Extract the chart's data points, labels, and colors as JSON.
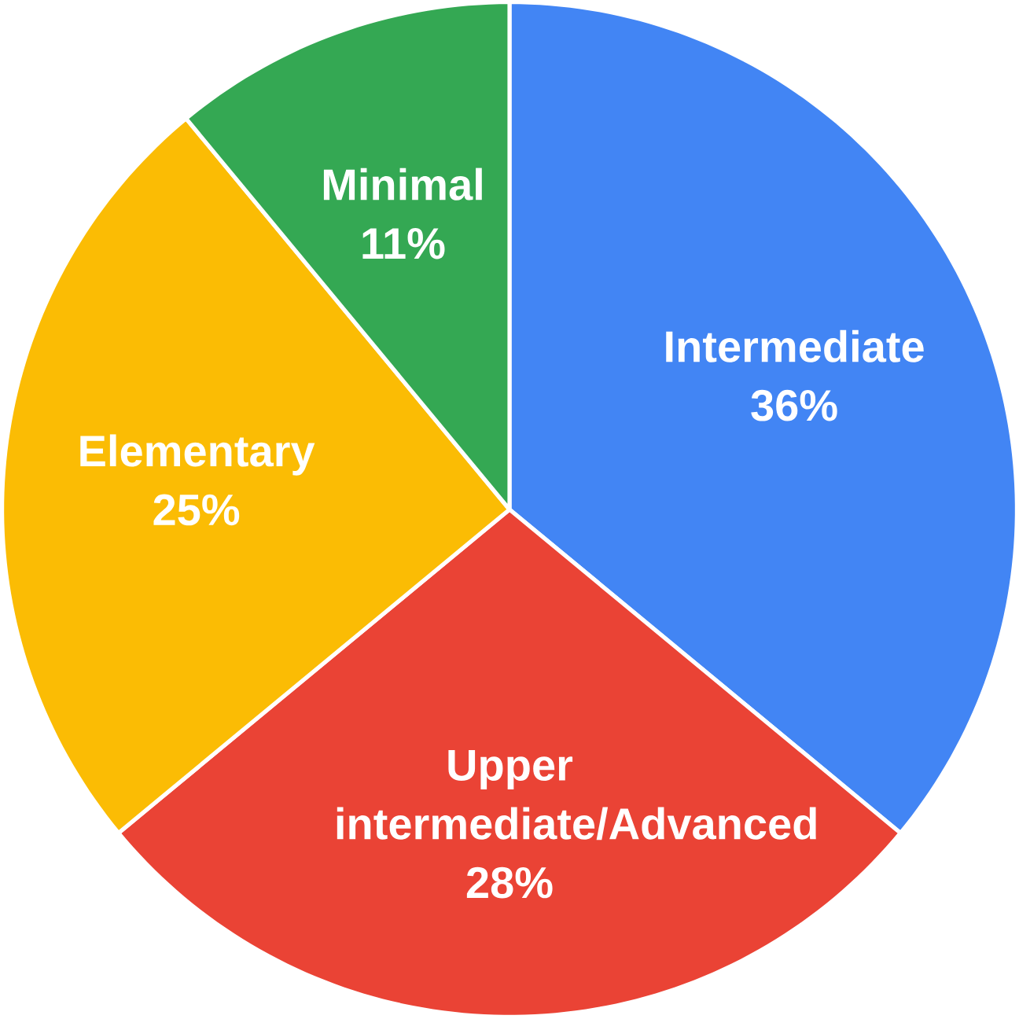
{
  "chart_data": {
    "type": "pie",
    "categories": [
      "Intermediate",
      "Upper intermediate/Advanced",
      "Elementary",
      "Minimal"
    ],
    "values": [
      36,
      28,
      25,
      11
    ],
    "colors": [
      "#4285f4",
      "#ea4335",
      "#fbbc04",
      "#34a853"
    ],
    "value_labels": [
      "36%",
      "28%",
      "25%",
      "11%"
    ]
  }
}
